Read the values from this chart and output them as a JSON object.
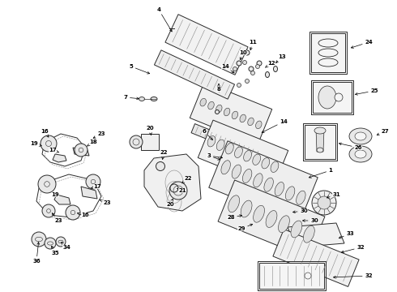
{
  "bg_color": "#ffffff",
  "fig_width": 4.9,
  "fig_height": 3.6,
  "dpi": 100,
  "lc": "#2a2a2a",
  "lc_light": "#888888",
  "lw_main": 0.7,
  "lw_thin": 0.4,
  "fs_label": 5.0
}
